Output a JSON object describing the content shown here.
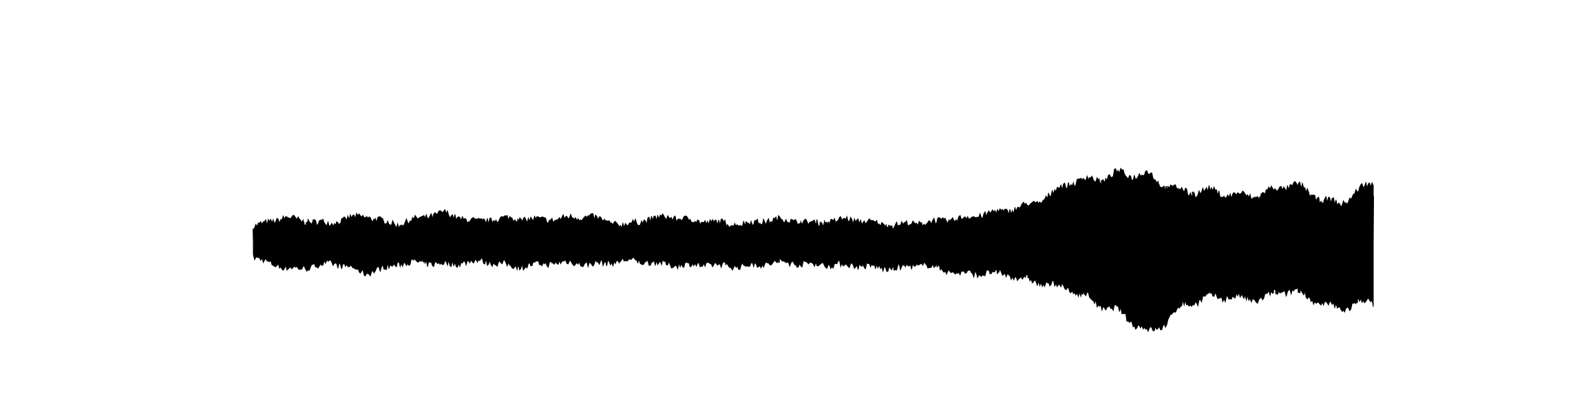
{
  "chart_data": {
    "type": "line",
    "title": "",
    "xlabel": "",
    "ylabel": "",
    "x_range": [
      0,
      1
    ],
    "ylim": [
      -1,
      1
    ],
    "grid": false,
    "legend": "none",
    "axes_visible": false,
    "series": [
      {
        "color": "#000000",
        "x": [
          0.0,
          0.03,
          0.07,
          0.1,
          0.13,
          0.17,
          0.2,
          0.23,
          0.27,
          0.3,
          0.33,
          0.37,
          0.4,
          0.43,
          0.47,
          0.5,
          0.53,
          0.57,
          0.6,
          0.63,
          0.67,
          0.7,
          0.73,
          0.77,
          0.8,
          0.83,
          0.87,
          0.9,
          0.93,
          0.97,
          1.0
        ],
        "upper": [
          0.12,
          0.2,
          0.15,
          0.22,
          0.14,
          0.25,
          0.16,
          0.2,
          0.18,
          0.22,
          0.13,
          0.22,
          0.16,
          0.15,
          0.18,
          0.16,
          0.18,
          0.14,
          0.15,
          0.2,
          0.25,
          0.35,
          0.5,
          0.6,
          0.55,
          0.45,
          0.4,
          0.42,
          0.48,
          0.32,
          0.5
        ],
        "lower": [
          -0.15,
          -0.25,
          -0.2,
          -0.28,
          -0.2,
          -0.2,
          -0.18,
          -0.22,
          -0.2,
          -0.2,
          -0.18,
          -0.2,
          -0.22,
          -0.22,
          -0.2,
          -0.2,
          -0.22,
          -0.24,
          -0.22,
          -0.28,
          -0.3,
          -0.35,
          -0.45,
          -0.6,
          -0.85,
          -0.55,
          -0.5,
          -0.5,
          -0.45,
          -0.6,
          -0.55
        ]
      }
    ]
  }
}
